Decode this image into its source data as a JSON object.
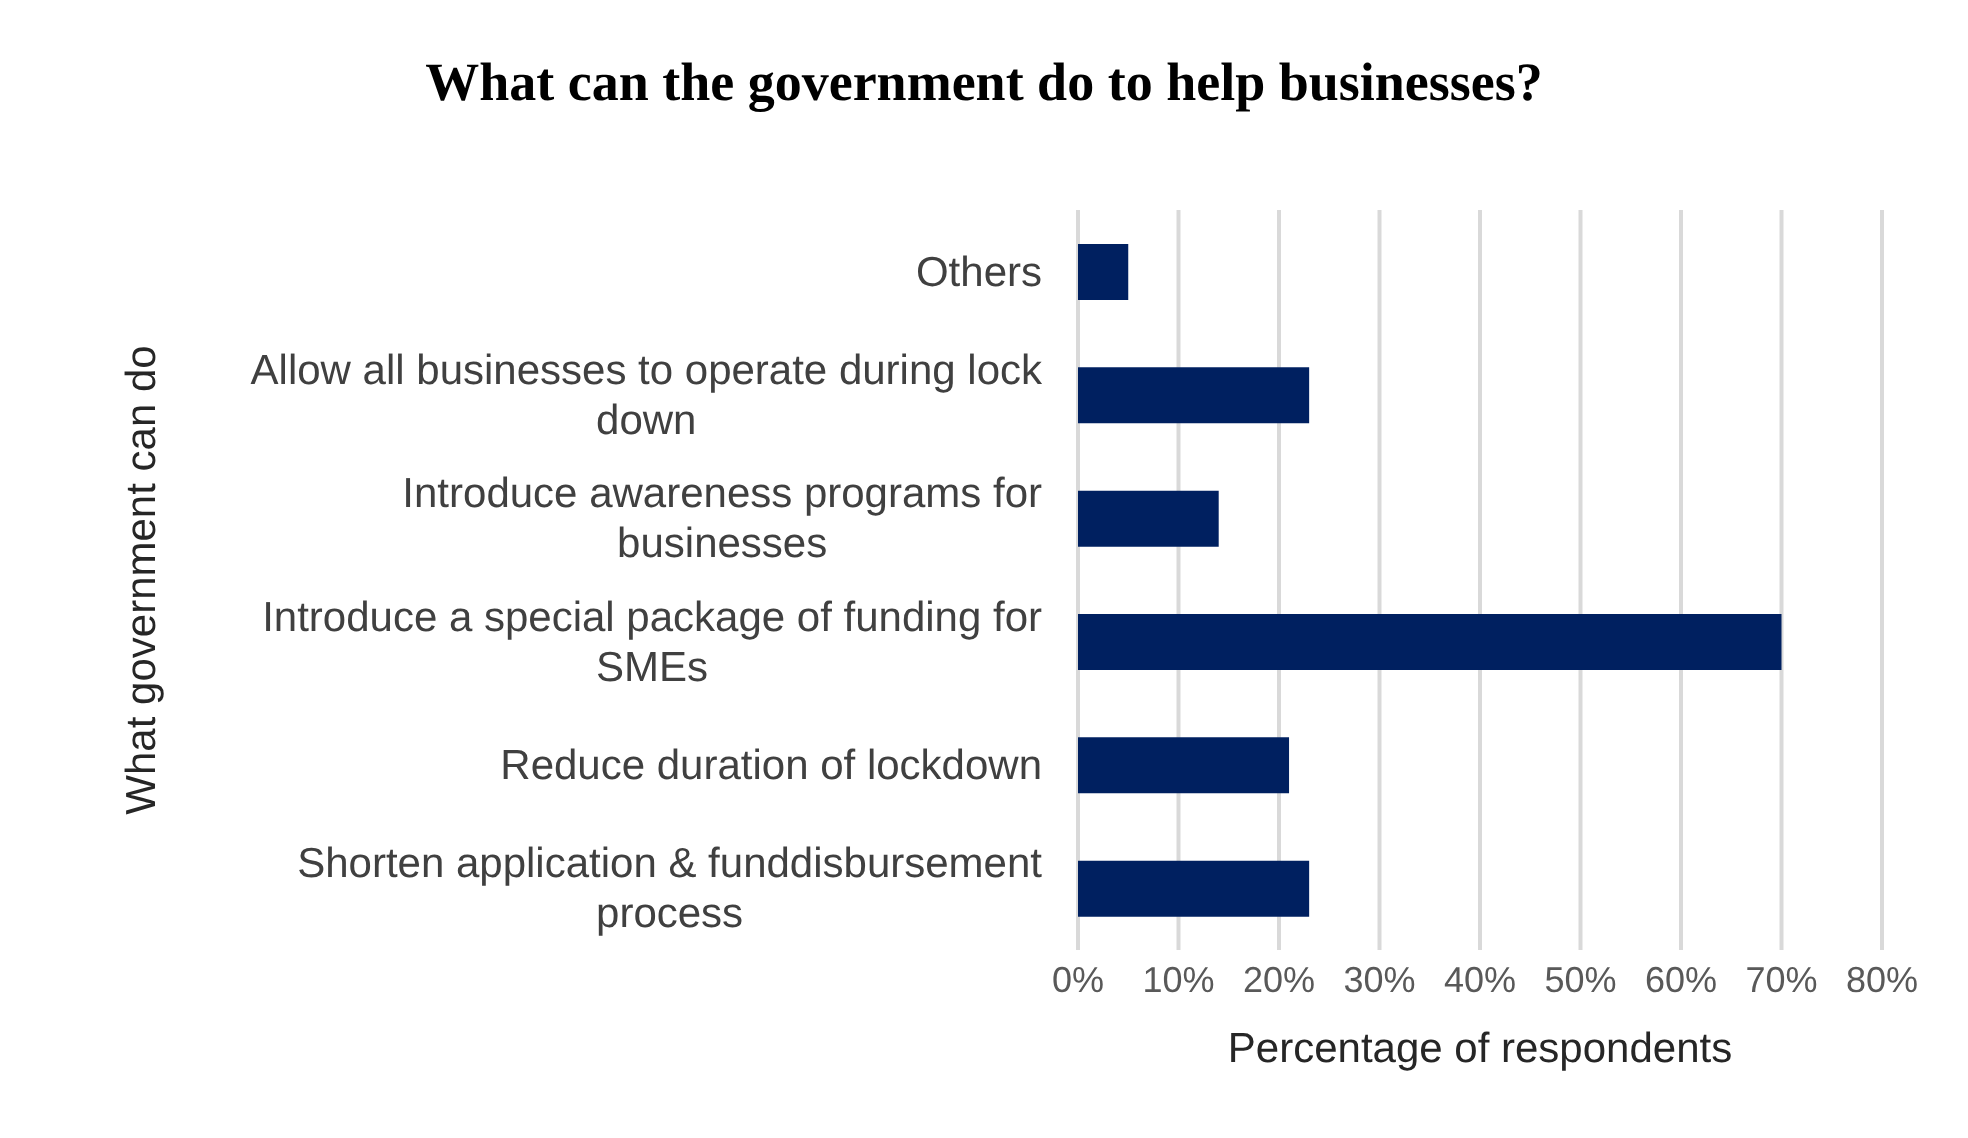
{
  "chart_data": {
    "type": "bar",
    "orientation": "horizontal",
    "title": "What can the government do to help businesses?",
    "xlabel": "Percentage of respondents",
    "ylabel": "What government can do",
    "categories": [
      "Others",
      "Allow all businesses to operate during lock down",
      "Introduce awareness programs for businesses",
      "Introduce a special package of funding for SMEs",
      "Reduce duration of lockdown",
      "Shorten application & funddisbursement process"
    ],
    "values": [
      5,
      23,
      14,
      70,
      21,
      23
    ],
    "color": "#002060",
    "xlim": [
      0,
      80
    ],
    "xticks": [
      {
        "value": 0,
        "label": "0%"
      },
      {
        "value": 10,
        "label": "10%"
      },
      {
        "value": 20,
        "label": "20%"
      },
      {
        "value": 30,
        "label": "30%"
      },
      {
        "value": 40,
        "label": "40%"
      },
      {
        "value": 50,
        "label": "50%"
      },
      {
        "value": 60,
        "label": "60%"
      },
      {
        "value": 70,
        "label": "70%"
      },
      {
        "value": 80,
        "label": "80%"
      }
    ],
    "grid": "x",
    "legend": false
  }
}
